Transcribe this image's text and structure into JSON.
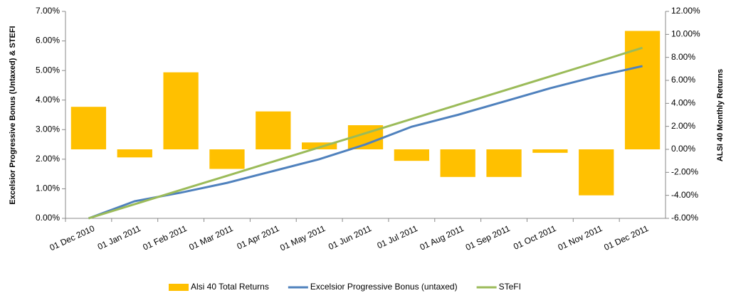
{
  "chart_data": {
    "type": "bar",
    "y_label": "Excelsior Progressive Bonus (Untaxed)  & STEFI",
    "y2_label": "ALSI 40 Monthly Returns",
    "categories": [
      "01 Dec 2010",
      "01 Jan 2011",
      "01 Feb 2011",
      "01 Mar 2011",
      "01 Apr 2011",
      "01 May 2011",
      "01 Jun 2011",
      "01 Jul 2011",
      "01 Aug 2011",
      "01 Sep 2011",
      "01 Oct 2011",
      "01 Nov 2011",
      "01 Dec 2011"
    ],
    "series": [
      {
        "name": "Alsi 40 Total Returns",
        "type": "bar",
        "axis": "y2",
        "color": "#ffc000",
        "values": [
          3.7,
          -0.7,
          6.7,
          -1.7,
          3.3,
          0.6,
          2.1,
          -1.0,
          -2.4,
          -2.4,
          -0.3,
          -4.0,
          10.3
        ]
      },
      {
        "name": "Excelsior Progressive Bonus (untaxed)",
        "type": "line",
        "color": "#4f81bd",
        "values": [
          0,
          0.58,
          0.87,
          1.2,
          1.6,
          2.0,
          2.5,
          3.1,
          3.5,
          3.95,
          4.4,
          4.8,
          5.15
        ]
      },
      {
        "name": "STeFI",
        "type": "line",
        "color": "#9bbb59",
        "values": [
          0,
          0.48,
          0.96,
          1.44,
          1.92,
          2.4,
          2.88,
          3.36,
          3.84,
          4.32,
          4.8,
          5.28,
          5.77
        ]
      }
    ],
    "ylim": [
      0,
      7
    ],
    "yticks": [
      {
        "value": 0,
        "label": "0.00%"
      },
      {
        "value": 1,
        "label": "1.00%"
      },
      {
        "value": 2,
        "label": "2.00%"
      },
      {
        "value": 3,
        "label": "3.00%"
      },
      {
        "value": 4,
        "label": "4.00%"
      },
      {
        "value": 5,
        "label": "5.00%"
      },
      {
        "value": 6,
        "label": "6.00%"
      },
      {
        "value": 7,
        "label": "7.00%"
      }
    ],
    "y2lim": [
      -6,
      12
    ],
    "y2ticks": [
      {
        "value": -6,
        "label": "-6.00%"
      },
      {
        "value": -4,
        "label": "-4.00%"
      },
      {
        "value": -2,
        "label": "-2.00%"
      },
      {
        "value": 0,
        "label": "0.00%"
      },
      {
        "value": 2,
        "label": "2.00%"
      },
      {
        "value": 4,
        "label": "4.00%"
      },
      {
        "value": 6,
        "label": "6.00%"
      },
      {
        "value": 8,
        "label": "8.00%"
      },
      {
        "value": 10,
        "label": "10.00%"
      },
      {
        "value": 12,
        "label": "12.00%"
      }
    ],
    "legend": "bottom"
  }
}
